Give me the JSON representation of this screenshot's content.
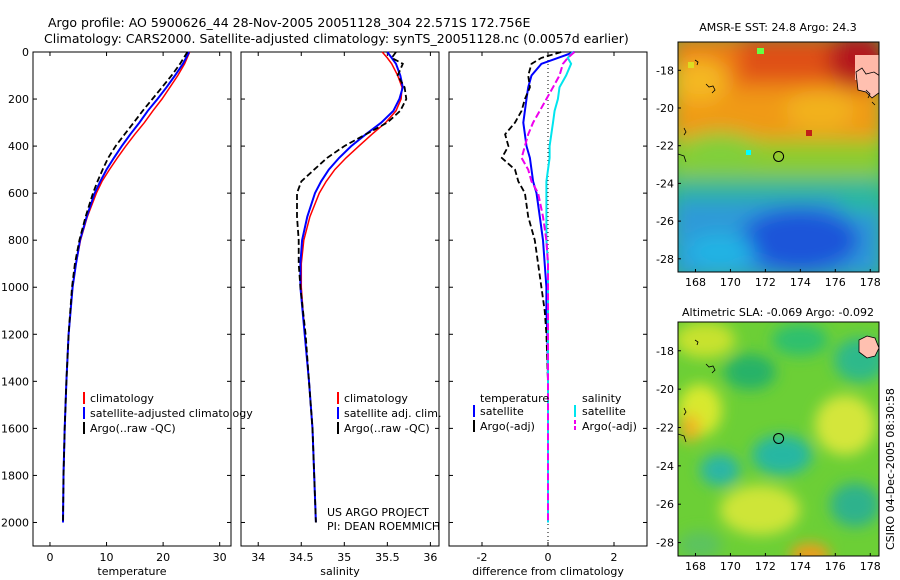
{
  "header": {
    "line1": "Argo profile: AO 5900626_44 28-Nov-2005 20051128_304 22.571S 172.756E",
    "line2": "Climatology: CARS2000. Satellite-adjusted climatology: synTS_20051128.nc (0.0057d earlier)"
  },
  "footer": {
    "project": "US ARGO PROJECT",
    "pi": "PI: DEAN ROEMMICH",
    "stamp": "CSIRO 04-Dec-2005 08:30:58"
  },
  "colors": {
    "climatology": "#ff0000",
    "satellite": "#0000ff",
    "argo": "#000000",
    "sal_satellite": "#00e5ee",
    "sal_argo": "#ee00ee"
  },
  "chart_data": [
    {
      "type": "line",
      "name": "temperature-panel",
      "xlabel": "temperature",
      "ylabel": "",
      "xlim": [
        -3,
        32
      ],
      "ylim": [
        0,
        2100
      ],
      "xticks": [
        0,
        10,
        20,
        30
      ],
      "yticks": [
        0,
        200,
        400,
        600,
        800,
        1000,
        1200,
        1400,
        1600,
        1800,
        2000
      ],
      "legend": [
        "climatology",
        "satellite-adjusted climatology",
        "Argo(..raw -QC)"
      ],
      "depth": [
        0,
        50,
        100,
        150,
        200,
        250,
        300,
        350,
        400,
        450,
        500,
        550,
        600,
        700,
        800,
        900,
        1000,
        1200,
        1400,
        1600,
        1800,
        2000
      ],
      "series": [
        {
          "name": "climatology",
          "values": [
            24.7,
            23.8,
            22.6,
            21.2,
            19.8,
            18.2,
            16.7,
            15.0,
            13.4,
            11.9,
            10.5,
            9.2,
            8.2,
            6.6,
            5.4,
            4.6,
            4.0,
            3.3,
            2.9,
            2.6,
            2.4,
            2.3
          ]
        },
        {
          "name": "satellite-adjusted climatology",
          "values": [
            24.6,
            23.5,
            22.1,
            20.6,
            19.0,
            17.3,
            15.8,
            14.2,
            12.7,
            11.3,
            10.0,
            8.9,
            7.9,
            6.5,
            5.3,
            4.6,
            4.0,
            3.3,
            2.9,
            2.6,
            2.4,
            2.3
          ]
        },
        {
          "name": "Argo(..raw -QC)",
          "values": [
            24.3,
            23.0,
            21.5,
            19.8,
            18.1,
            16.4,
            14.8,
            13.2,
            11.6,
            10.3,
            9.3,
            8.4,
            7.6,
            6.3,
            5.2,
            4.4,
            3.9,
            3.3,
            2.9,
            2.6,
            2.4,
            2.3
          ]
        }
      ]
    },
    {
      "type": "line",
      "name": "salinity-panel",
      "xlabel": "salinity",
      "ylabel": "",
      "xlim": [
        33.8,
        36.1
      ],
      "ylim": [
        0,
        2100
      ],
      "xticks": [
        34,
        34.5,
        35,
        35.5,
        36
      ],
      "legend": [
        "climatology",
        "satellite adj. clim.",
        "Argo(..raw -QC)"
      ],
      "depth": [
        0,
        25,
        50,
        100,
        150,
        200,
        250,
        300,
        350,
        400,
        450,
        500,
        550,
        600,
        700,
        800,
        900,
        1000,
        1200,
        1400,
        1600,
        1800,
        2000
      ],
      "series": [
        {
          "name": "climatology",
          "values": [
            35.44,
            35.5,
            35.55,
            35.62,
            35.67,
            35.66,
            35.6,
            35.48,
            35.32,
            35.17,
            35.02,
            34.89,
            34.79,
            34.71,
            34.6,
            34.53,
            34.5,
            34.5,
            34.54,
            34.59,
            34.63,
            34.65,
            34.67
          ]
        },
        {
          "name": "satellite adj. clim.",
          "values": [
            35.5,
            35.55,
            35.6,
            35.65,
            35.68,
            35.64,
            35.57,
            35.43,
            35.25,
            35.08,
            34.94,
            34.82,
            34.73,
            34.66,
            34.57,
            34.51,
            34.49,
            34.49,
            34.54,
            34.59,
            34.63,
            34.65,
            34.67
          ]
        },
        {
          "name": "Argo(..raw -QC)",
          "values": [
            35.6,
            35.55,
            35.68,
            35.62,
            35.7,
            35.72,
            35.65,
            35.5,
            35.25,
            35.0,
            34.8,
            34.65,
            34.5,
            34.45,
            34.45,
            34.47,
            34.47,
            34.49,
            34.55,
            34.59,
            34.63,
            34.65,
            34.67
          ]
        }
      ]
    },
    {
      "type": "line",
      "name": "difference-panel",
      "xlabel": "difference from climatology",
      "ylabel": "",
      "xlim": [
        -3,
        3
      ],
      "ylim": [
        0,
        2100
      ],
      "xticks": [
        -2,
        0,
        2
      ],
      "legend": [
        "temperature",
        "satellite",
        "Argo(-adj)",
        "salinity",
        "satellite",
        "Argo(-adj)"
      ],
      "depth": [
        0,
        25,
        50,
        100,
        150,
        200,
        250,
        300,
        350,
        400,
        450,
        500,
        550,
        600,
        700,
        800,
        900,
        1000,
        1100,
        1200,
        1400,
        1600,
        1800,
        2000
      ],
      "series": [
        {
          "name": "temperature satellite",
          "values": [
            0.8,
            0.3,
            -0.2,
            -0.5,
            -0.6,
            -0.65,
            -0.7,
            -0.75,
            -0.7,
            -0.65,
            -0.55,
            -0.5,
            -0.45,
            -0.35,
            -0.25,
            -0.15,
            -0.1,
            -0.05,
            -0.05,
            -0.02,
            0,
            0,
            0,
            0
          ]
        },
        {
          "name": "temperature Argo(-adj)",
          "values": [
            0.4,
            -0.2,
            -0.5,
            -0.6,
            -0.55,
            -0.7,
            -0.8,
            -1.0,
            -1.3,
            -1.2,
            -1.4,
            -1.0,
            -0.9,
            -0.7,
            -0.6,
            -0.4,
            -0.3,
            -0.2,
            -0.1,
            -0.05,
            0,
            0,
            0,
            0
          ]
        },
        {
          "name": "salinity satellite",
          "values": [
            0.75,
            0.6,
            0.7,
            0.55,
            0.35,
            0.3,
            0.2,
            0.15,
            0.1,
            0.05,
            0.05,
            0.0,
            -0.05,
            -0.05,
            -0.05,
            -0.05,
            0.0,
            0.0,
            0.0,
            0.0,
            0.0,
            0.0,
            0.0,
            0.0
          ]
        },
        {
          "name": "salinity Argo(-adj)",
          "values": [
            0.8,
            0.6,
            0.45,
            0.35,
            0.15,
            -0.05,
            -0.25,
            -0.45,
            -0.6,
            -0.7,
            -0.8,
            -0.6,
            -0.5,
            -0.3,
            -0.15,
            -0.05,
            0.0,
            0.0,
            0.0,
            0.0,
            0.0,
            0.0,
            0.0,
            0.0
          ]
        }
      ]
    },
    {
      "type": "heatmap",
      "name": "sst-map",
      "title": "AMSR-E SST: 24.8 Argo: 24.3",
      "xlim": [
        167,
        178.5
      ],
      "ylim": [
        -28.7,
        -16.5
      ],
      "xticks": [
        168,
        170,
        172,
        174,
        176,
        178
      ],
      "yticks": [
        -18,
        -20,
        -22,
        -24,
        -26,
        -28
      ],
      "marker": {
        "lon": 172.756,
        "lat": -22.571
      }
    },
    {
      "type": "heatmap",
      "name": "sla-map",
      "title": "Altimetric SLA: -0.069 Argo: -0.092",
      "xlim": [
        167,
        178.5
      ],
      "ylim": [
        -28.7,
        -16.5
      ],
      "xticks": [
        168,
        170,
        172,
        174,
        176,
        178
      ],
      "yticks": [
        -18,
        -20,
        -22,
        -24,
        -26,
        -28
      ],
      "marker": {
        "lon": 172.756,
        "lat": -22.571
      }
    }
  ]
}
